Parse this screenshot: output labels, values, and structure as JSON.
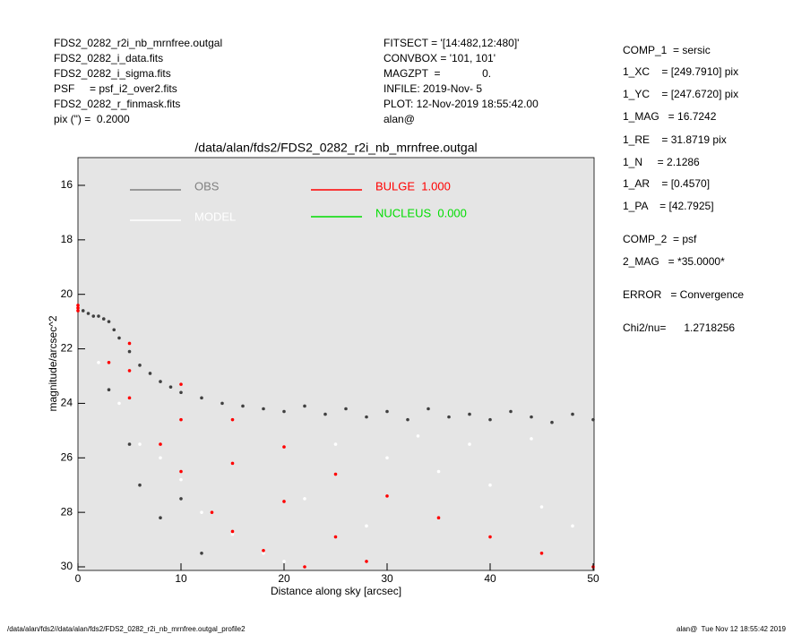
{
  "header": {
    "left": [
      "FDS2_0282_r2i_nb_mrnfree.outgal",
      "FDS2_0282_i_data.fits",
      "FDS2_0282_i_sigma.fits",
      "PSF     = psf_i2_over2.fits",
      "FDS2_0282_r_finmask.fits",
      "pix (\") =  0.2000"
    ],
    "middle": [
      "FITSECT = '[14:482,12:480]'",
      "CONVBOX = '101, 101'",
      "MAGZPT  =              0.",
      "INFILE: 2019-Nov- 5",
      "PLOT: 12-Nov-2019 18:55:42.00",
      "alan@"
    ],
    "right": [
      "COMP_1  = sersic",
      "1_XC    = [249.7910] pix",
      "1_YC    = [247.6720] pix",
      "1_MAG   = 16.7242",
      "1_RE    = 31.8719 pix",
      "1_N     = 2.1286",
      "1_AR    = [0.4570]",
      "1_PA    = [42.7925]",
      "COMP_2  = psf",
      "2_MAG   = *35.0000*",
      "ERROR   = Convergence",
      "Chi2/nu=      1.2718256"
    ]
  },
  "footer": {
    "left": "/data/alan/fds2//data/alan/fds2/FDS2_0282_r2i_nb_mrnfree.outgal_profile2",
    "right": "alan@  Tue Nov 12 18:55:42 2019"
  },
  "chart_data": {
    "type": "scatter",
    "title": "/data/alan/fds2/FDS2_0282_r2i_nb_mrnfree.outgal",
    "x_label": "Distance along sky [arcsec]",
    "y_label": "magnitude/arcsec^2",
    "xlim": [
      0,
      50
    ],
    "ylim": [
      30,
      15
    ],
    "xticks": [
      0,
      10,
      20,
      30,
      40,
      50
    ],
    "yticks": [
      16,
      18,
      20,
      22,
      24,
      26,
      28,
      30
    ],
    "background": "#e5e5e5",
    "series": [
      {
        "name": "OBS",
        "color": "#404040",
        "legend_color": "#808080",
        "x": [
          0.5,
          1,
          1.5,
          2,
          2.5,
          3,
          3.5,
          4,
          5,
          6,
          7,
          8,
          9,
          10,
          12,
          14,
          16,
          18,
          20,
          22,
          24,
          26,
          28,
          30,
          32,
          34,
          36,
          38,
          40,
          42,
          44,
          46,
          48,
          50,
          5,
          6,
          8,
          10,
          12,
          3
        ],
        "values": [
          20.6,
          20.7,
          20.8,
          20.8,
          20.9,
          21.0,
          21.3,
          21.6,
          22.1,
          22.6,
          22.9,
          23.2,
          23.4,
          23.6,
          23.8,
          24.0,
          24.1,
          24.2,
          24.3,
          24.1,
          24.4,
          24.2,
          24.5,
          24.3,
          24.6,
          24.2,
          24.5,
          24.4,
          24.6,
          24.3,
          24.5,
          24.7,
          24.4,
          24.6,
          25.5,
          27.0,
          28.2,
          27.5,
          29.5,
          23.5
        ]
      },
      {
        "name": "MODEL",
        "color": "#ffffff",
        "x": [
          2,
          4,
          6,
          8,
          10,
          12,
          15,
          18,
          20,
          25,
          30,
          35,
          40,
          45,
          48,
          22,
          28,
          33,
          38,
          44
        ],
        "values": [
          22.5,
          24,
          25.5,
          26,
          26.8,
          28,
          28.8,
          29.5,
          29.8,
          25.5,
          26,
          26.5,
          27,
          27.8,
          28.5,
          27.5,
          28.5,
          25.2,
          25.5,
          25.3
        ]
      },
      {
        "name": "BULGE  1.000",
        "color": "#ff0000",
        "x": [
          0,
          5,
          10,
          15,
          20,
          25,
          30,
          35,
          40,
          45,
          50,
          0,
          5,
          10,
          15,
          20,
          25,
          28,
          0,
          3,
          5,
          8,
          10,
          13,
          15,
          18,
          22
        ],
        "values": [
          20.4,
          21.8,
          23.3,
          24.6,
          25.6,
          26.6,
          27.4,
          28.2,
          28.9,
          29.5,
          30.0,
          20.5,
          22.8,
          24.6,
          26.2,
          27.6,
          28.9,
          29.8,
          20.6,
          22.5,
          23.8,
          25.5,
          26.5,
          28.0,
          28.7,
          29.4,
          30.0
        ]
      },
      {
        "name": "NUCLEUS  0.000",
        "color": "#00dd00",
        "x": [],
        "values": []
      }
    ]
  }
}
